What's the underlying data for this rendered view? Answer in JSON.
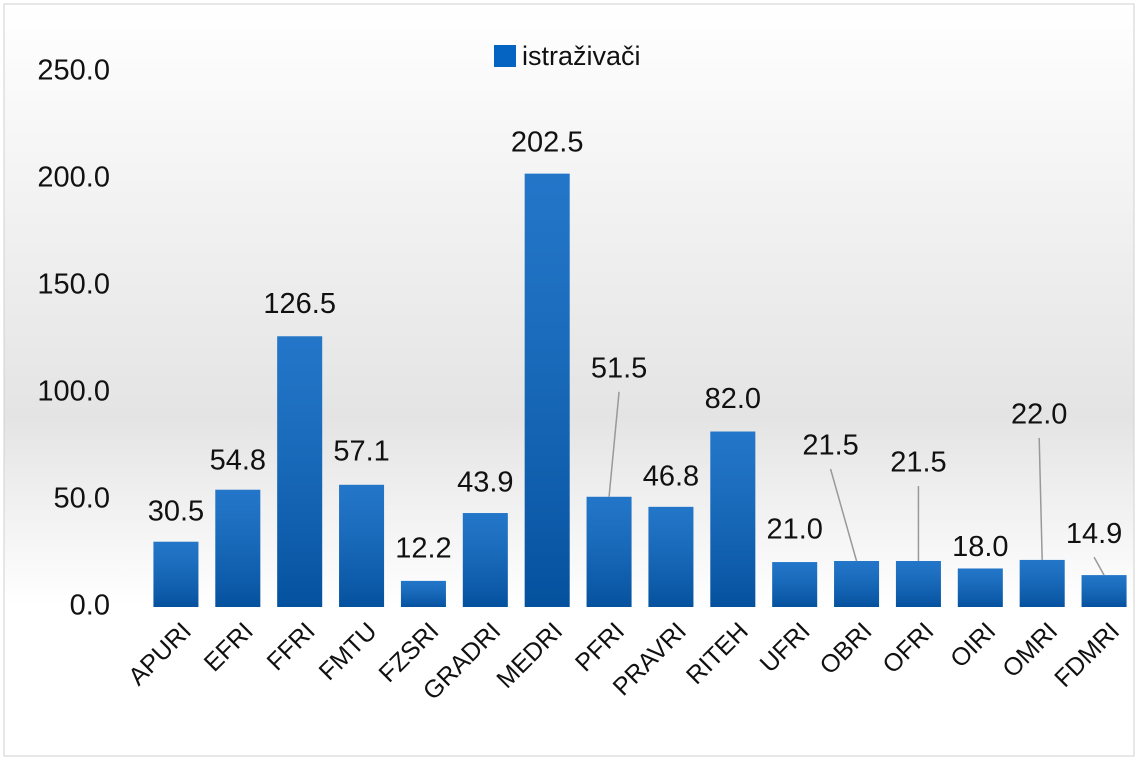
{
  "chart_data": {
    "type": "bar",
    "categories": [
      "APURI",
      "EFRI",
      "FFRI",
      "FMTU",
      "FZSRI",
      "GRADRI",
      "MEDRI",
      "PFRI",
      "PRAVRI",
      "RITEH",
      "UFRI",
      "OBRI",
      "OFRI",
      "OIRI",
      "OMRI",
      "FDMRI"
    ],
    "series": [
      {
        "name": "istraživači",
        "color": "#0563c1",
        "values": [
          30.5,
          54.8,
          126.5,
          57.1,
          12.2,
          43.9,
          202.5,
          51.5,
          46.8,
          82.0,
          21.0,
          21.5,
          21.5,
          18.0,
          22.0,
          14.9
        ],
        "value_labels": [
          "30.5",
          "54.8",
          "126.5",
          "57.1",
          "12.2",
          "43.9",
          "202.5",
          "51.5",
          "46.8",
          "82.0",
          "21.0",
          "21.5",
          "21.5",
          "18.0",
          "22.0",
          "14.9"
        ]
      }
    ],
    "ylim": [
      0,
      250
    ],
    "yticks": [
      {
        "value": 0,
        "label": "0.0"
      },
      {
        "value": 50,
        "label": "50.0"
      },
      {
        "value": 100,
        "label": "100.0"
      },
      {
        "value": 150,
        "label": "150.0"
      },
      {
        "value": 200,
        "label": "200.0"
      },
      {
        "value": 250,
        "label": "250.0"
      }
    ],
    "grid": false,
    "legend": "top"
  }
}
